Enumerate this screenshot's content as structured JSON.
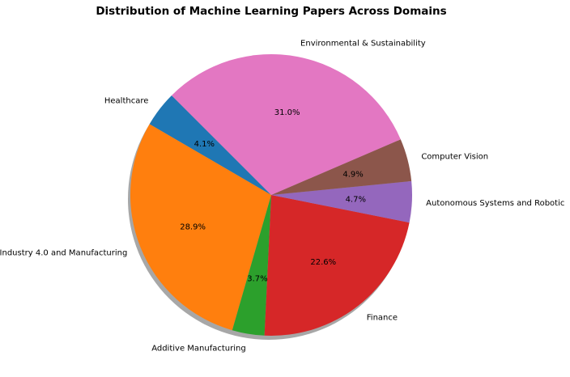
{
  "chart_data": {
    "type": "pie",
    "title": "Distribution of Machine Learning Papers Across Domains",
    "start_angle_deg": 135,
    "direction": "counterclockwise",
    "shadow": true,
    "slices": [
      {
        "label": "Healthcare",
        "value": 4.1,
        "pct_label": "4.1%",
        "color": "#1f77b4"
      },
      {
        "label": "Industry 4.0 and Manufacturing",
        "value": 28.9,
        "pct_label": "28.9%",
        "color": "#ff7f0e"
      },
      {
        "label": "Additive Manufacturing",
        "value": 3.7,
        "pct_label": "3.7%",
        "color": "#2ca02c"
      },
      {
        "label": "Finance",
        "value": 22.6,
        "pct_label": "22.6%",
        "color": "#d62728"
      },
      {
        "label": "Autonomous Systems and Robotic",
        "value": 4.7,
        "pct_label": "4.7%",
        "color": "#9467bd"
      },
      {
        "label": "Computer Vision",
        "value": 4.9,
        "pct_label": "4.9%",
        "color": "#8c564b"
      },
      {
        "label": "Environmental & Sustainability",
        "value": 31.0,
        "pct_label": "31.0%",
        "color": "#e377c2"
      }
    ]
  }
}
